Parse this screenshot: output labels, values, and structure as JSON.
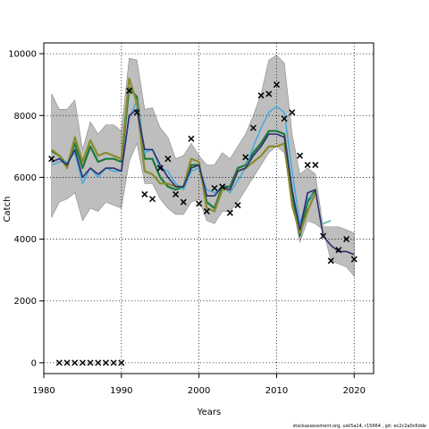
{
  "chart_data": {
    "type": "line",
    "xlabel": "Years",
    "ylabel": "Catch",
    "xlim": [
      1980,
      2022.5
    ],
    "ylim": [
      -350,
      10350
    ],
    "xticks": [
      1980,
      1990,
      2000,
      2010,
      2020
    ],
    "yticks": [
      0,
      2000,
      4000,
      6000,
      8000,
      10000
    ],
    "grid": true,
    "footer": "stockassessment.org, usk5a14, r15664 , git: ec2c2a0c6dde",
    "band": {
      "x": [
        1981,
        1982,
        1983,
        1984,
        1985,
        1986,
        1987,
        1988,
        1989,
        1990,
        1991,
        1992,
        1993,
        1994,
        1995,
        1996,
        1997,
        1998,
        1999,
        2000,
        2001,
        2002,
        2003,
        2004,
        2005,
        2006,
        2007,
        2008,
        2009,
        2010,
        2011,
        2012,
        2013,
        2014,
        2015,
        2016,
        2017,
        2018,
        2019,
        2020
      ],
      "lower": [
        4700,
        5200,
        5300,
        5500,
        4600,
        5000,
        4900,
        5200,
        5100,
        5000,
        6500,
        7100,
        5800,
        5800,
        5300,
        5000,
        4800,
        4800,
        5200,
        5300,
        4600,
        4500,
        4900,
        4900,
        5200,
        5600,
        6000,
        6400,
        6800,
        7000,
        6800,
        5200,
        3900,
        4600,
        4500,
        4300,
        3300,
        3200,
        3100,
        2800
      ],
      "upper": [
        8700,
        8200,
        8200,
        8500,
        6900,
        7800,
        7400,
        7700,
        7700,
        7500,
        9850,
        9800,
        8200,
        8250,
        7600,
        7300,
        6600,
        6700,
        7100,
        6700,
        6400,
        6400,
        6800,
        6600,
        7000,
        7400,
        8000,
        8700,
        9800,
        9950,
        9700,
        7400,
        6100,
        6300,
        6100,
        4400,
        4400,
        4400,
        4300,
        4200
      ]
    },
    "series": [
      {
        "color": "#1a7a3a",
        "width": 2.2,
        "x": [
          1981,
          1982,
          1983,
          1984,
          1985,
          1986,
          1987,
          1988,
          1989,
          1990,
          1991,
          1992,
          1993,
          1994,
          1995,
          1996,
          1997,
          1998,
          1999,
          2000,
          2001,
          2002,
          2003,
          2004,
          2005,
          2006,
          2007,
          2008,
          2009,
          2010,
          2011,
          2012,
          2013,
          2014,
          2015
        ],
        "y": [
          6850,
          6700,
          6400,
          7100,
          6300,
          7000,
          6500,
          6600,
          6600,
          6500,
          8900,
          8600,
          6600,
          6600,
          6000,
          5700,
          5600,
          5700,
          6400,
          6400,
          5200,
          5000,
          5700,
          5700,
          6300,
          6400,
          6800,
          7100,
          7500,
          7500,
          7400,
          5500,
          4100,
          5200,
          5600
        ]
      },
      {
        "color": "#3aa9dc",
        "width": 1.4,
        "x": [
          1981,
          1982,
          1983,
          1984,
          1985,
          1986,
          1987,
          1988,
          1989,
          1990,
          1991,
          1992,
          1993,
          1994,
          1995,
          1996,
          1997,
          1998,
          1999,
          2000,
          2001,
          2002,
          2003,
          2004,
          2005,
          2006,
          2007,
          2008,
          2009,
          2010,
          2011,
          2012,
          2013,
          2014,
          2015
        ],
        "y": [
          6400,
          6500,
          6500,
          6800,
          5800,
          6300,
          6000,
          6300,
          6200,
          6200,
          7900,
          8500,
          6800,
          6900,
          6300,
          6200,
          5800,
          5600,
          6200,
          6300,
          5600,
          5500,
          5700,
          5500,
          5900,
          6300,
          7000,
          7600,
          8100,
          8300,
          8100,
          6200,
          4500,
          5300,
          5500
        ]
      },
      {
        "color": "#8a8a2e",
        "width": 2.2,
        "x": [
          1981,
          1982,
          1983,
          1984,
          1985,
          1986,
          1987,
          1988,
          1989,
          1990,
          1991,
          1992,
          1993,
          1994,
          1995,
          1996,
          1997,
          1998,
          1999,
          2000,
          2001,
          2002,
          2003,
          2004,
          2005,
          2006,
          2007,
          2008,
          2009,
          2010,
          2011,
          2012,
          2013,
          2014,
          2015
        ],
        "y": [
          6900,
          6700,
          6300,
          7300,
          6500,
          7200,
          6700,
          6800,
          6700,
          6600,
          9200,
          8400,
          6200,
          6100,
          5800,
          5800,
          5700,
          5700,
          6600,
          6500,
          5000,
          4900,
          5600,
          5600,
          6200,
          6300,
          6500,
          6700,
          7000,
          7000,
          7100,
          5100,
          4200,
          4900,
          5500
        ]
      },
      {
        "color": "#2d2f6e",
        "width": 1.6,
        "x": [
          1981,
          1982,
          1983,
          1984,
          1985,
          1986,
          1987,
          1988,
          1989,
          1990,
          1991,
          1992,
          1993,
          1994,
          1995,
          1996,
          1997,
          1998,
          1999,
          2000,
          2001,
          2002,
          2003,
          2004,
          2005,
          2006,
          2007,
          2008,
          2009,
          2010,
          2011,
          2012,
          2013,
          2014,
          2015,
          2016,
          2017,
          2018,
          2019,
          2020
        ],
        "y": [
          6500,
          6600,
          6400,
          6900,
          6000,
          6300,
          6100,
          6300,
          6300,
          6200,
          8000,
          8200,
          6900,
          6900,
          6400,
          6000,
          5700,
          5700,
          6300,
          6400,
          5400,
          5400,
          5700,
          5600,
          6200,
          6300,
          6700,
          7000,
          7400,
          7400,
          7300,
          5600,
          4300,
          5500,
          5600,
          4100,
          3800,
          3600,
          3600,
          3500
        ]
      },
      {
        "color": "#3bb89a",
        "width": 1.4,
        "x": [
          2016,
          2017
        ],
        "y": [
          4500,
          4600
        ]
      }
    ],
    "observed": {
      "x": [
        1981,
        1982,
        1983,
        1984,
        1985,
        1986,
        1987,
        1988,
        1989,
        1990,
        1991,
        1992,
        1993,
        1994,
        1995,
        1996,
        1997,
        1998,
        1999,
        2000,
        2001,
        2002,
        2003,
        2004,
        2005,
        2006,
        2007,
        2008,
        2009,
        2010,
        2011,
        2012,
        2013,
        2014,
        2015,
        2016,
        2017,
        2018,
        2019,
        2020
      ],
      "y": [
        6600,
        0,
        0,
        0,
        0,
        0,
        0,
        0,
        0,
        0,
        8800,
        8100,
        5450,
        5300,
        6300,
        6600,
        5450,
        5200,
        7250,
        5150,
        4900,
        5650,
        5700,
        4850,
        5100,
        6650,
        7600,
        8650,
        8700,
        9000,
        7900,
        8100,
        6700,
        6400,
        6400,
        4100,
        3300,
        3650,
        4000,
        3350
      ]
    }
  }
}
